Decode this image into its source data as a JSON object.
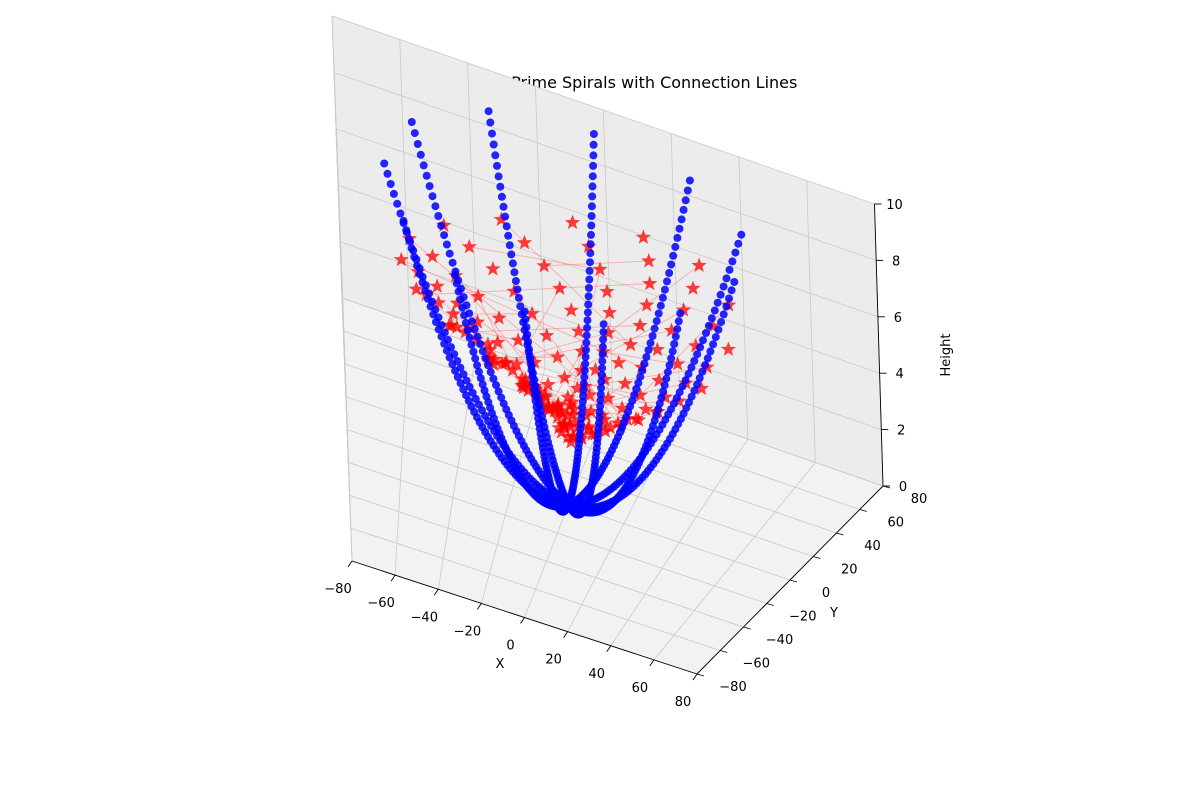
{
  "chart_data": {
    "type": "scatter",
    "title": "Gaussian Prime Spirals with Connection Lines",
    "xlabel": "X",
    "ylabel": "Y",
    "zlabel": "Height",
    "xlim": [
      -80,
      80
    ],
    "ylim": [
      -80,
      80
    ],
    "zlim": [
      0,
      10
    ],
    "x_ticks": [
      "−80",
      "−60",
      "−40",
      "−20",
      "0",
      "20",
      "40",
      "60",
      "80"
    ],
    "y_ticks": [
      "−80",
      "−60",
      "−40",
      "−20",
      "0",
      "20",
      "40",
      "60",
      "80"
    ],
    "z_ticks": [
      "0",
      "2",
      "4",
      "6",
      "8",
      "10"
    ],
    "grid": true,
    "projection": "3d",
    "elevation_deg": 30,
    "azimuth_deg": -60,
    "series": [
      {
        "kind": "parabolic-curves",
        "color": "#0000ff",
        "marker": "circle",
        "count": 12,
        "radius_at_top": 63,
        "height_range": [
          0,
          10
        ],
        "azimuths_deg": [
          0,
          30,
          60,
          90,
          120,
          150,
          180,
          210,
          240,
          270,
          300,
          330
        ]
      },
      {
        "kind": "star-spiral-arms",
        "color": "#ff0000",
        "marker": "star",
        "line_color": "#ff8080",
        "arms": 16,
        "radius_range": [
          3,
          58
        ],
        "height_range": [
          3,
          7
        ]
      }
    ]
  }
}
